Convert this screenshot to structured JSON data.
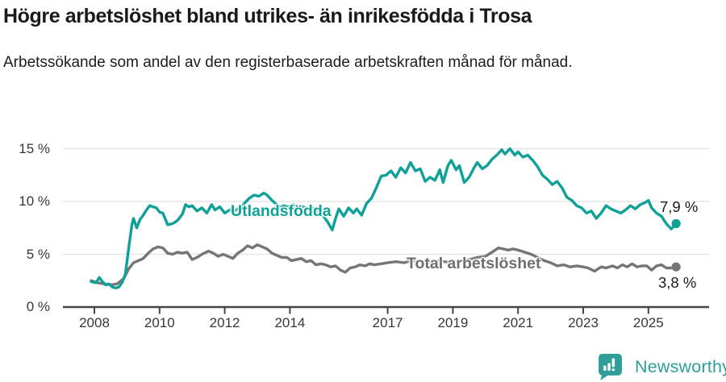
{
  "chart_data": {
    "type": "line",
    "title": "Högre arbetslöshet bland utrikes- än inrikesfödda i Trosa",
    "subtitle": "Arbetssökande som andel av den registerbaserade arbetskraften månad för månad.",
    "xlabel": "",
    "ylabel": "",
    "y_unit": "%",
    "grid": "horizontal",
    "label_style": "inline",
    "xlim": [
      2007.8,
      2026.3
    ],
    "ylim": [
      0,
      16.2
    ],
    "x_ticks": [
      {
        "value": 2008,
        "label": "2008"
      },
      {
        "value": 2010,
        "label": "2010"
      },
      {
        "value": 2012,
        "label": "2012"
      },
      {
        "value": 2014,
        "label": "2014"
      },
      {
        "value": 2017,
        "label": "2017"
      },
      {
        "value": 2019,
        "label": "2019"
      },
      {
        "value": 2021,
        "label": "2021"
      },
      {
        "value": 2023,
        "label": "2023"
      },
      {
        "value": 2025,
        "label": "2025"
      }
    ],
    "y_ticks": [
      {
        "value": 0,
        "label": "0 %"
      },
      {
        "value": 5,
        "label": "5 %"
      },
      {
        "value": 10,
        "label": "10 %"
      },
      {
        "value": 15,
        "label": "15 %"
      }
    ],
    "series": [
      {
        "name": "Utlandsfödda",
        "color": "#10A096",
        "end_label": "7,9 %",
        "end_value": 7.9,
        "points": [
          [
            2007.9,
            2.4
          ],
          [
            2008.05,
            2.3
          ],
          [
            2008.15,
            2.8
          ],
          [
            2008.25,
            2.4
          ],
          [
            2008.35,
            2.1
          ],
          [
            2008.45,
            2.2
          ],
          [
            2008.55,
            1.9
          ],
          [
            2008.65,
            1.8
          ],
          [
            2008.75,
            1.9
          ],
          [
            2008.85,
            2.3
          ],
          [
            2008.95,
            3.1
          ],
          [
            2009.05,
            5.5
          ],
          [
            2009.15,
            7.8
          ],
          [
            2009.2,
            8.4
          ],
          [
            2009.3,
            7.5
          ],
          [
            2009.4,
            8.3
          ],
          [
            2009.5,
            8.7
          ],
          [
            2009.6,
            9.2
          ],
          [
            2009.7,
            9.6
          ],
          [
            2009.8,
            9.5
          ],
          [
            2009.9,
            9.4
          ],
          [
            2010.0,
            9.0
          ],
          [
            2010.1,
            8.9
          ],
          [
            2010.25,
            7.8
          ],
          [
            2010.4,
            7.9
          ],
          [
            2010.55,
            8.2
          ],
          [
            2010.7,
            8.8
          ],
          [
            2010.8,
            9.7
          ],
          [
            2010.9,
            9.5
          ],
          [
            2011.0,
            9.6
          ],
          [
            2011.15,
            9.1
          ],
          [
            2011.3,
            9.4
          ],
          [
            2011.45,
            8.9
          ],
          [
            2011.6,
            9.7
          ],
          [
            2011.7,
            9.2
          ],
          [
            2011.85,
            9.5
          ],
          [
            2012.0,
            8.9
          ],
          [
            2012.15,
            9.2
          ],
          [
            2012.3,
            9.1
          ],
          [
            2012.45,
            9.4
          ],
          [
            2012.6,
            9.8
          ],
          [
            2012.75,
            10.3
          ],
          [
            2012.9,
            10.6
          ],
          [
            2013.05,
            10.5
          ],
          [
            2013.2,
            10.8
          ],
          [
            2013.3,
            10.6
          ],
          [
            2013.45,
            10.1
          ],
          [
            2013.6,
            9.7
          ],
          [
            2013.7,
            9.4
          ],
          [
            2013.8,
            9.6
          ],
          [
            2013.95,
            9.5
          ],
          [
            2014.1,
            9.7
          ],
          [
            2014.25,
            9.4
          ],
          [
            2014.4,
            9.5
          ],
          [
            2014.55,
            9.3
          ],
          [
            2014.7,
            9.4
          ],
          [
            2014.85,
            9.0
          ],
          [
            2015.0,
            8.7
          ],
          [
            2015.15,
            8.1
          ],
          [
            2015.3,
            7.3
          ],
          [
            2015.4,
            8.4
          ],
          [
            2015.5,
            9.3
          ],
          [
            2015.65,
            8.6
          ],
          [
            2015.8,
            9.4
          ],
          [
            2015.95,
            8.9
          ],
          [
            2016.05,
            9.3
          ],
          [
            2016.2,
            8.7
          ],
          [
            2016.35,
            9.8
          ],
          [
            2016.5,
            10.3
          ],
          [
            2016.65,
            11.3
          ],
          [
            2016.8,
            12.4
          ],
          [
            2016.95,
            12.5
          ],
          [
            2017.1,
            12.9
          ],
          [
            2017.25,
            12.3
          ],
          [
            2017.4,
            13.2
          ],
          [
            2017.55,
            12.7
          ],
          [
            2017.7,
            13.7
          ],
          [
            2017.85,
            12.9
          ],
          [
            2018.0,
            13.1
          ],
          [
            2018.15,
            11.9
          ],
          [
            2018.3,
            12.3
          ],
          [
            2018.45,
            12.0
          ],
          [
            2018.6,
            13.0
          ],
          [
            2018.7,
            11.8
          ],
          [
            2018.85,
            13.4
          ],
          [
            2018.95,
            13.9
          ],
          [
            2019.1,
            13.0
          ],
          [
            2019.2,
            13.4
          ],
          [
            2019.35,
            11.8
          ],
          [
            2019.5,
            12.3
          ],
          [
            2019.65,
            13.2
          ],
          [
            2019.75,
            13.7
          ],
          [
            2019.9,
            13.1
          ],
          [
            2020.05,
            13.4
          ],
          [
            2020.2,
            14.0
          ],
          [
            2020.35,
            14.4
          ],
          [
            2020.5,
            14.9
          ],
          [
            2020.6,
            14.5
          ],
          [
            2020.75,
            15.0
          ],
          [
            2020.9,
            14.4
          ],
          [
            2021.0,
            14.7
          ],
          [
            2021.15,
            14.2
          ],
          [
            2021.3,
            14.4
          ],
          [
            2021.45,
            13.9
          ],
          [
            2021.6,
            13.3
          ],
          [
            2021.75,
            12.5
          ],
          [
            2021.9,
            12.1
          ],
          [
            2022.05,
            11.6
          ],
          [
            2022.2,
            11.9
          ],
          [
            2022.35,
            11.3
          ],
          [
            2022.5,
            10.4
          ],
          [
            2022.65,
            10.1
          ],
          [
            2022.8,
            9.6
          ],
          [
            2022.95,
            9.4
          ],
          [
            2023.1,
            8.9
          ],
          [
            2023.25,
            9.1
          ],
          [
            2023.4,
            8.4
          ],
          [
            2023.55,
            8.9
          ],
          [
            2023.7,
            9.6
          ],
          [
            2023.85,
            9.3
          ],
          [
            2024.0,
            9.1
          ],
          [
            2024.15,
            8.9
          ],
          [
            2024.3,
            9.2
          ],
          [
            2024.45,
            9.6
          ],
          [
            2024.6,
            9.3
          ],
          [
            2024.75,
            9.7
          ],
          [
            2024.9,
            9.9
          ],
          [
            2025.0,
            10.1
          ],
          [
            2025.1,
            9.4
          ],
          [
            2025.25,
            8.9
          ],
          [
            2025.4,
            8.6
          ],
          [
            2025.55,
            7.9
          ],
          [
            2025.7,
            7.4
          ],
          [
            2025.85,
            7.9
          ]
        ]
      },
      {
        "name": "Total arbetslöshet",
        "color": "#757578",
        "end_label": "3,8 %",
        "end_value": 3.8,
        "points": [
          [
            2007.9,
            2.5
          ],
          [
            2008.1,
            2.3
          ],
          [
            2008.3,
            2.2
          ],
          [
            2008.5,
            2.1
          ],
          [
            2008.7,
            2.2
          ],
          [
            2008.9,
            2.7
          ],
          [
            2009.05,
            3.6
          ],
          [
            2009.2,
            4.2
          ],
          [
            2009.35,
            4.4
          ],
          [
            2009.5,
            4.6
          ],
          [
            2009.65,
            5.1
          ],
          [
            2009.8,
            5.5
          ],
          [
            2009.95,
            5.7
          ],
          [
            2010.1,
            5.6
          ],
          [
            2010.25,
            5.1
          ],
          [
            2010.4,
            5.0
          ],
          [
            2010.55,
            5.2
          ],
          [
            2010.7,
            5.1
          ],
          [
            2010.85,
            5.2
          ],
          [
            2011.0,
            4.5
          ],
          [
            2011.15,
            4.7
          ],
          [
            2011.3,
            5.0
          ],
          [
            2011.5,
            5.3
          ],
          [
            2011.65,
            5.1
          ],
          [
            2011.8,
            4.8
          ],
          [
            2011.95,
            5.0
          ],
          [
            2012.1,
            4.8
          ],
          [
            2012.25,
            4.6
          ],
          [
            2012.4,
            5.1
          ],
          [
            2012.55,
            5.4
          ],
          [
            2012.7,
            5.8
          ],
          [
            2012.85,
            5.6
          ],
          [
            2013.0,
            5.9
          ],
          [
            2013.15,
            5.7
          ],
          [
            2013.3,
            5.5
          ],
          [
            2013.45,
            5.1
          ],
          [
            2013.6,
            4.9
          ],
          [
            2013.75,
            4.7
          ],
          [
            2013.9,
            4.7
          ],
          [
            2014.05,
            4.4
          ],
          [
            2014.2,
            4.5
          ],
          [
            2014.35,
            4.6
          ],
          [
            2014.5,
            4.3
          ],
          [
            2014.65,
            4.4
          ],
          [
            2014.8,
            4.0
          ],
          [
            2014.95,
            4.1
          ],
          [
            2015.1,
            4.0
          ],
          [
            2015.25,
            3.8
          ],
          [
            2015.4,
            3.9
          ],
          [
            2015.55,
            3.5
          ],
          [
            2015.7,
            3.3
          ],
          [
            2015.85,
            3.7
          ],
          [
            2016.0,
            3.8
          ],
          [
            2016.15,
            4.0
          ],
          [
            2016.3,
            3.9
          ],
          [
            2016.45,
            4.1
          ],
          [
            2016.6,
            4.0
          ],
          [
            2016.8,
            4.1
          ],
          [
            2017.0,
            4.2
          ],
          [
            2017.25,
            4.3
          ],
          [
            2017.5,
            4.2
          ],
          [
            2017.75,
            4.4
          ],
          [
            2018.0,
            4.3
          ],
          [
            2018.25,
            4.2
          ],
          [
            2018.5,
            4.4
          ],
          [
            2018.75,
            4.3
          ],
          [
            2019.0,
            4.2
          ],
          [
            2019.25,
            4.4
          ],
          [
            2019.5,
            4.5
          ],
          [
            2019.75,
            4.7
          ],
          [
            2020.0,
            4.8
          ],
          [
            2020.2,
            5.2
          ],
          [
            2020.4,
            5.6
          ],
          [
            2020.55,
            5.5
          ],
          [
            2020.7,
            5.4
          ],
          [
            2020.85,
            5.5
          ],
          [
            2021.0,
            5.4
          ],
          [
            2021.2,
            5.2
          ],
          [
            2021.4,
            5.0
          ],
          [
            2021.6,
            4.7
          ],
          [
            2021.8,
            4.4
          ],
          [
            2022.0,
            4.2
          ],
          [
            2022.2,
            3.9
          ],
          [
            2022.4,
            4.0
          ],
          [
            2022.6,
            3.8
          ],
          [
            2022.8,
            3.9
          ],
          [
            2023.0,
            3.8
          ],
          [
            2023.15,
            3.7
          ],
          [
            2023.35,
            3.4
          ],
          [
            2023.55,
            3.8
          ],
          [
            2023.7,
            3.7
          ],
          [
            2023.9,
            3.9
          ],
          [
            2024.05,
            3.7
          ],
          [
            2024.2,
            4.0
          ],
          [
            2024.35,
            3.8
          ],
          [
            2024.5,
            4.1
          ],
          [
            2024.65,
            3.8
          ],
          [
            2024.8,
            3.9
          ],
          [
            2024.95,
            3.9
          ],
          [
            2025.1,
            3.5
          ],
          [
            2025.25,
            3.9
          ],
          [
            2025.4,
            4.0
          ],
          [
            2025.55,
            3.7
          ],
          [
            2025.7,
            3.7
          ],
          [
            2025.85,
            3.8
          ]
        ]
      }
    ]
  },
  "footer": {
    "brand": "Newsworthy",
    "brand_color": "#2F9E98"
  }
}
